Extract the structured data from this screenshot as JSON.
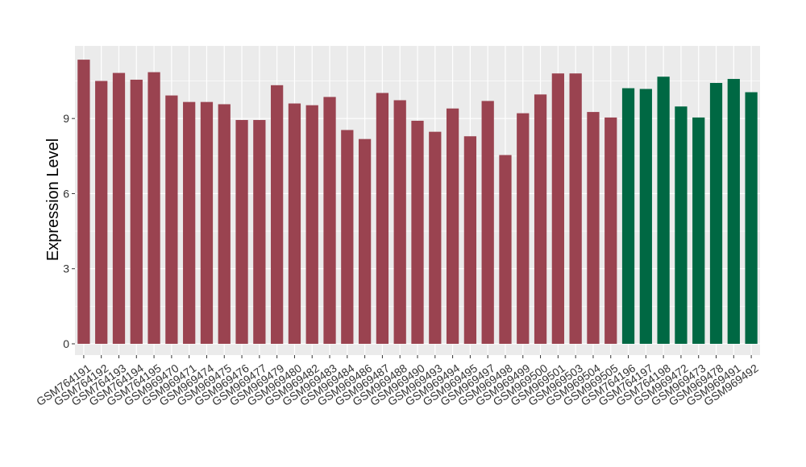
{
  "chart_data": {
    "type": "bar",
    "ylabel": "Expression Level",
    "ylim": [
      -0.45,
      11.9
    ],
    "yticks": [
      0,
      3,
      6,
      9
    ],
    "grid": true,
    "legend": "none",
    "colors": {
      "panel_bg": "#ebebeb",
      "grid": "#ffffff",
      "group_a": "#9a4350",
      "group_b": "#006843"
    },
    "categories": [
      "GSM764191",
      "GSM764192",
      "GSM764193",
      "GSM764194",
      "GSM764195",
      "GSM969470",
      "GSM969471",
      "GSM969474",
      "GSM969475",
      "GSM969476",
      "GSM969477",
      "GSM969479",
      "GSM969480",
      "GSM969482",
      "GSM969483",
      "GSM969484",
      "GSM969486",
      "GSM969487",
      "GSM969488",
      "GSM969490",
      "GSM969493",
      "GSM969494",
      "GSM969495",
      "GSM969497",
      "GSM969498",
      "GSM969499",
      "GSM969500",
      "GSM969501",
      "GSM969503",
      "GSM969504",
      "GSM969505",
      "GSM764196",
      "GSM764197",
      "GSM764198",
      "GSM969472",
      "GSM969473",
      "GSM969478",
      "GSM969491",
      "GSM969492"
    ],
    "values": [
      11.35,
      10.5,
      10.82,
      10.55,
      10.85,
      9.92,
      9.66,
      9.66,
      9.57,
      8.94,
      8.94,
      10.33,
      9.6,
      9.53,
      9.86,
      8.54,
      8.18,
      10.02,
      9.73,
      8.91,
      8.47,
      9.4,
      8.29,
      9.7,
      7.54,
      9.21,
      9.96,
      10.8,
      10.8,
      9.26,
      9.04,
      10.21,
      10.18,
      10.67,
      9.48,
      9.04,
      10.42,
      10.58,
      10.05
    ],
    "groups": [
      "a",
      "a",
      "a",
      "a",
      "a",
      "a",
      "a",
      "a",
      "a",
      "a",
      "a",
      "a",
      "a",
      "a",
      "a",
      "a",
      "a",
      "a",
      "a",
      "a",
      "a",
      "a",
      "a",
      "a",
      "a",
      "a",
      "a",
      "a",
      "a",
      "a",
      "a",
      "b",
      "b",
      "b",
      "b",
      "b",
      "b",
      "b",
      "b"
    ]
  }
}
